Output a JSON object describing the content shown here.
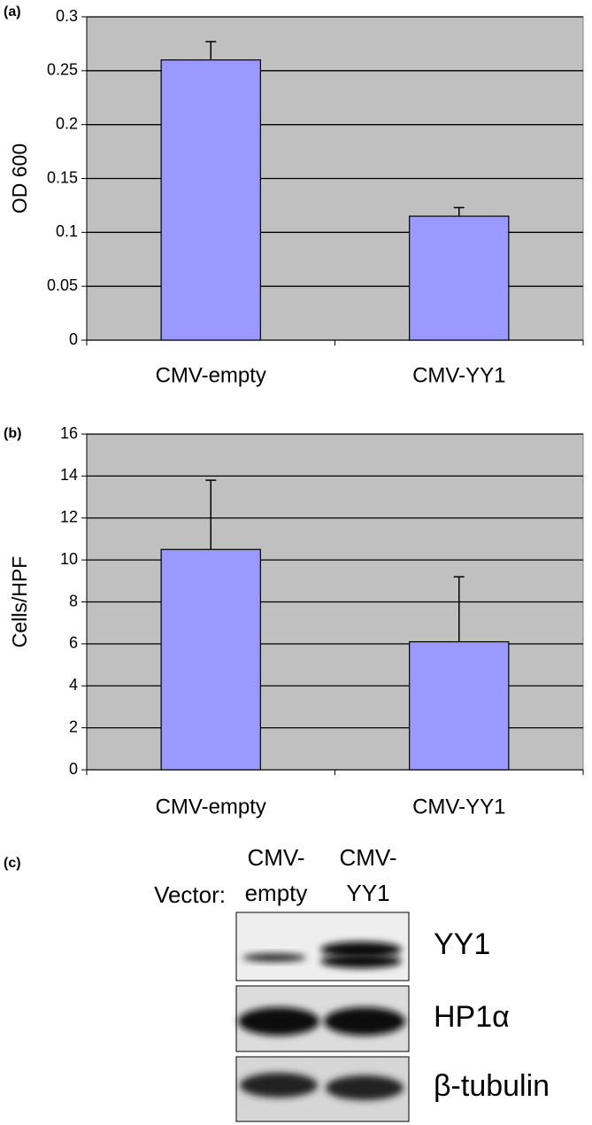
{
  "chart_data": [
    {
      "type": "bar",
      "panel_label": "(a)",
      "y_label": "OD 600",
      "categories": [
        "CMV-empty",
        "CMV-YY1"
      ],
      "values": [
        0.26,
        0.115
      ],
      "errors": [
        0.017,
        0.008
      ],
      "color": "#9999ff",
      "ylim": [
        0,
        0.3
      ],
      "yticks": [
        0,
        0.05,
        0.1,
        0.15,
        0.2,
        0.25,
        0.3
      ],
      "grid": true
    },
    {
      "type": "bar",
      "panel_label": "(b)",
      "y_label": "Cells/HPF",
      "categories": [
        "CMV-empty",
        "CMV-YY1"
      ],
      "values": [
        10.5,
        6.1
      ],
      "errors": [
        3.3,
        3.1
      ],
      "color": "#9999ff",
      "ylim": [
        0,
        16
      ],
      "yticks": [
        0,
        2,
        4,
        6,
        8,
        10,
        12,
        14,
        16
      ],
      "grid": true
    }
  ],
  "blot": {
    "panel_label": "(c)",
    "vector_label": "Vector:",
    "lanes": [
      [
        "CMV-",
        "empty"
      ],
      [
        "CMV-",
        "YY1"
      ]
    ],
    "bands": [
      "YY1",
      "HP1α",
      "β-tubulin"
    ]
  }
}
